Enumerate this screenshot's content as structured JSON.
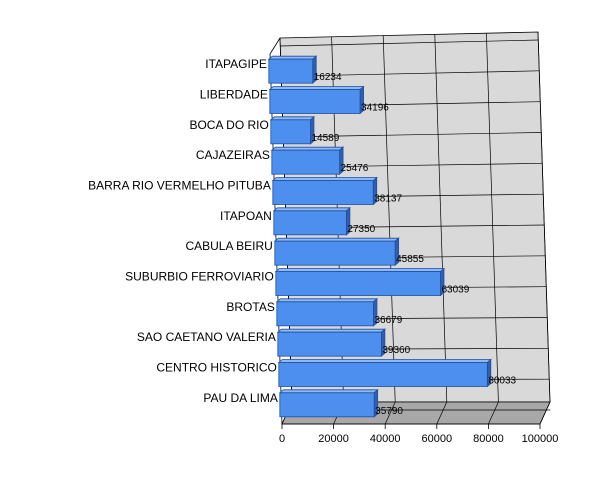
{
  "chart_data": {
    "type": "bar",
    "orientation": "horizontal",
    "three_d": true,
    "categories": [
      "ITAPAGIPE",
      "LIBERDADE",
      "BOCA DO RIO",
      "CAJAZEIRAS",
      "BARRA RIO VERMELHO PITUBA",
      "ITAPOAN",
      "CABULA BEIRU",
      "SUBURBIO FERROVIARIO",
      "BROTAS",
      "SAO CAETANO VALERIA",
      "CENTRO HISTORICO",
      "PAU DA LIMA"
    ],
    "values": [
      16234,
      34196,
      14589,
      25476,
      38137,
      27350,
      45855,
      63039,
      36679,
      39360,
      80033,
      35790
    ],
    "value_labels": [
      "16234",
      "34196",
      "14589",
      "25476",
      "38137",
      "27350",
      "45855",
      "63039",
      "36679",
      "39360",
      "80033",
      "35790"
    ],
    "xlim": [
      0,
      100000
    ],
    "xticks": [
      "0",
      "20000",
      "40000",
      "60000",
      "80000",
      "100000"
    ],
    "title": "",
    "xlabel": "",
    "ylabel": "",
    "grid": true,
    "legend": "none",
    "colors": {
      "bar_front": "#4d8fef",
      "bar_top": "#8fb8f7",
      "bar_side": "#2f5fae",
      "bar_edge": "#1f4f9e",
      "back_wall": "#d9d9d9",
      "floor": "#a8a8a8",
      "grid": "#000000"
    }
  }
}
